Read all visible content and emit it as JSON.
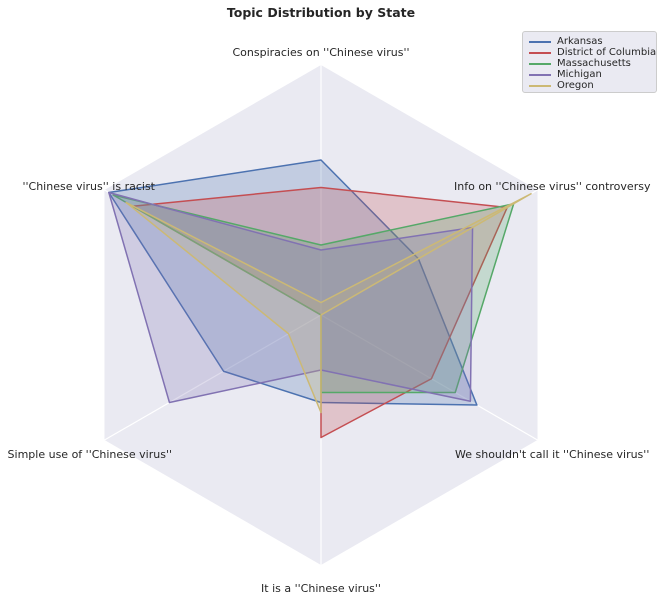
{
  "chart_data": {
    "type": "radar",
    "title": "Topic Distribution by State",
    "axes": [
      "Conspiracies on ''Chinese virus''",
      "Info on ''Chinese virus'' controversy",
      "We shouldn't call it ''Chinese virus''",
      "It is a ''Chinese virus''",
      "Simple use of ''Chinese virus''",
      "''Chinese virus'' is racist"
    ],
    "rmax": 1.0,
    "grid": true,
    "legend_position": "top-right",
    "series": [
      {
        "name": "Arkansas",
        "color": "#4c72b0",
        "values": [
          0.62,
          0.45,
          0.72,
          0.35,
          0.45,
          0.98
        ]
      },
      {
        "name": "District of Columbia",
        "color": "#c44e52",
        "values": [
          0.51,
          0.86,
          0.51,
          0.49,
          0.0,
          0.87
        ]
      },
      {
        "name": "Massachusetts",
        "color": "#55a868",
        "values": [
          0.28,
          0.89,
          0.62,
          0.31,
          0.0,
          0.96
        ]
      },
      {
        "name": "Michigan",
        "color": "#8172b2",
        "values": [
          0.26,
          0.7,
          0.69,
          0.22,
          0.7,
          0.98
        ]
      },
      {
        "name": "Oregon",
        "color": "#ccb974",
        "values": [
          0.05,
          0.97,
          0.0,
          0.39,
          0.15,
          0.9
        ]
      }
    ]
  }
}
